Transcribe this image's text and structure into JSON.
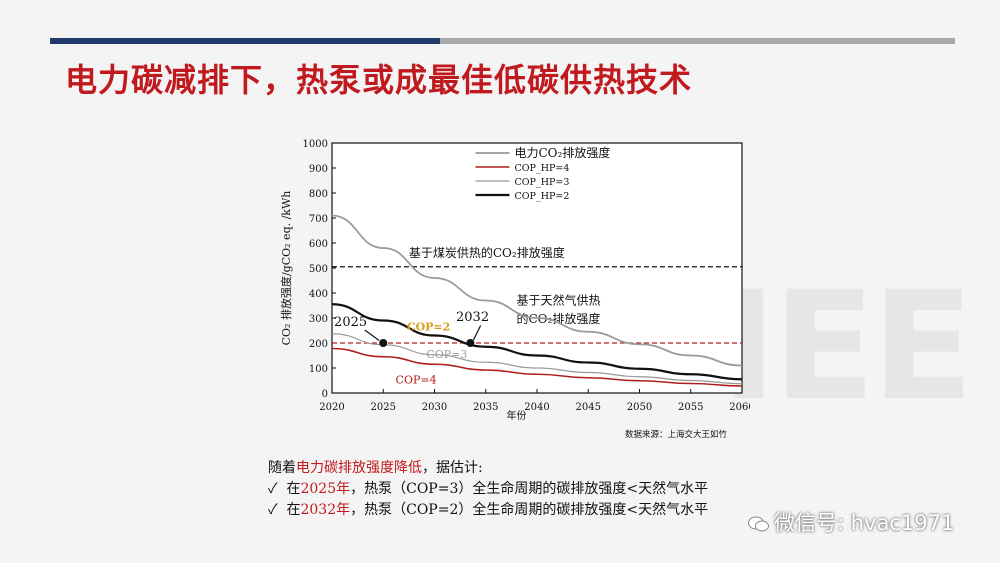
{
  "slide": {
    "title": "电力碳减排下，热泵或成最佳低碳供热技术",
    "watermark": "IEE",
    "summary_line1_prefix": "随着",
    "summary_line1_red": "电力碳排放强度降低",
    "summary_line1_suffix": "，据估计:",
    "bullet_mark": "✓",
    "bullet1_prefix": "在",
    "bullet1_red": "2025年",
    "bullet1_suffix": "，热泵（COP=3）全生命周期的碳排放强度<天然气水平",
    "bullet2_prefix": "在",
    "bullet2_red": "2032年",
    "bullet2_suffix": "，热泵（COP=2）全生命周期的碳排放强度<天然气水平",
    "wechat": "微信号: hvac1971"
  },
  "chart_data": {
    "type": "line",
    "ylabel": "CO₂ 排放强度/gCO₂ eq. /kWh",
    "xlabel": "年份",
    "source": "数据来源：上海交大王如竹",
    "xlim": [
      2020,
      2060
    ],
    "ylim": [
      0,
      1000
    ],
    "xticks": [
      2020,
      2025,
      2030,
      2035,
      2040,
      2045,
      2050,
      2055,
      2060
    ],
    "yticks": [
      0,
      100,
      200,
      300,
      400,
      500,
      600,
      700,
      800,
      900,
      1000
    ],
    "x": [
      2020,
      2025,
      2030,
      2035,
      2040,
      2045,
      2050,
      2055,
      2060
    ],
    "series": [
      {
        "name": "电力CO₂排放强度",
        "color": "#9a9a9a",
        "values": [
          710,
          580,
          460,
          370,
          300,
          245,
          195,
          150,
          110
        ]
      },
      {
        "name": "COP_HP=4",
        "color": "#b11d1d",
        "values": [
          178,
          145,
          115,
          92,
          75,
          61,
          49,
          38,
          28
        ]
      },
      {
        "name": "COP_HP=3",
        "color": "#9a9a9a",
        "values": [
          237,
          193,
          153,
          123,
          100,
          82,
          65,
          50,
          37
        ]
      },
      {
        "name": "COP_HP=2",
        "color": "#111111",
        "values": [
          355,
          290,
          230,
          185,
          150,
          122,
          97,
          75,
          55
        ]
      }
    ],
    "reference_lines": [
      {
        "label": "基于煤炭供热的CO₂排放强度",
        "value": 505,
        "color": "#111111"
      },
      {
        "label_line1": "基于天然气供热",
        "label_line2": "的CO₂排放强度",
        "value": 200,
        "color": "#b11d1d"
      }
    ],
    "annotations": [
      {
        "text": "2025",
        "x": 2025,
        "y": 200
      },
      {
        "text": "2032",
        "x": 2033.5,
        "y": 200
      },
      {
        "text": "COP=2",
        "color": "#d4a017"
      },
      {
        "text": "COP=3",
        "color": "#9a9a9a"
      },
      {
        "text": "COP=4",
        "color": "#b11d1d"
      }
    ]
  }
}
